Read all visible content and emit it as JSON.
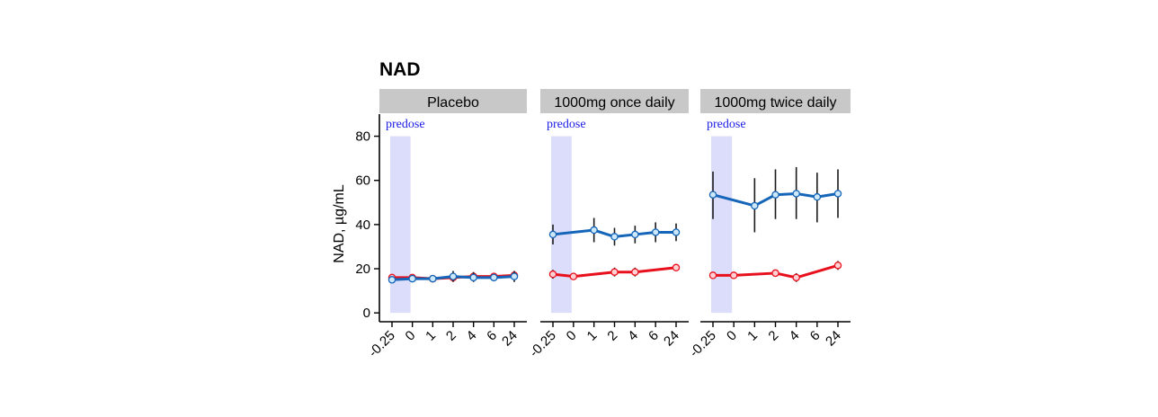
{
  "chart_data": {
    "type": "line",
    "title": "NAD",
    "ylabel": "NAD, µg/mL",
    "xlabel": "",
    "ylim": [
      -4,
      90
    ],
    "y_ticks": [
      0,
      20,
      40,
      60,
      80
    ],
    "x_ticks": [
      "-0.25",
      "0",
      "1",
      "2",
      "4",
      "6",
      "24"
    ],
    "shaded_region": {
      "label": "predose",
      "from": "-0.25",
      "to": "0",
      "fill": "#dcdcfb",
      "label_color": "#1a1ae6"
    },
    "series_styles": [
      {
        "color": "#e8101c",
        "marker_fill": "#ffd0d4"
      },
      {
        "color": "#1565b8",
        "marker_fill": "#cde8fb"
      }
    ],
    "panels": [
      {
        "label": "Placebo",
        "series": [
          {
            "x": [
              "-0.25",
              "0",
              "1",
              "2",
              "4",
              "6",
              "24"
            ],
            "values": [
              16,
              16,
              15.5,
              16,
              16.5,
              16.5,
              17
            ],
            "err_low": [
              null,
              null,
              null,
              null,
              null,
              null,
              null
            ],
            "err_high": [
              null,
              null,
              null,
              null,
              null,
              null,
              null
            ]
          },
          {
            "x": [
              "-0.25",
              "0",
              "1",
              "2",
              "4",
              "6",
              "24"
            ],
            "values": [
              15,
              15.5,
              15.5,
              16.5,
              16,
              16,
              16.5
            ],
            "err_low": [
              null,
              null,
              null,
              14,
              14,
              null,
              14
            ],
            "err_high": [
              null,
              null,
              null,
              19,
              18.5,
              null,
              19
            ]
          }
        ]
      },
      {
        "label": "1000mg once daily",
        "series": [
          {
            "x": [
              "-0.25",
              "0",
              "2",
              "4",
              "24"
            ],
            "values": [
              17.5,
              16.5,
              18.5,
              18.5,
              20.5
            ],
            "err_low": [
              15.5,
              null,
              16.5,
              16.5,
              null
            ],
            "err_high": [
              19.5,
              null,
              20.5,
              20.5,
              null
            ]
          },
          {
            "x": [
              "-0.25",
              "1",
              "2",
              "4",
              "6",
              "24"
            ],
            "values": [
              35.5,
              37.5,
              34.5,
              35.5,
              36.5,
              36.5
            ],
            "err_low": [
              31,
              32,
              30.5,
              31.5,
              32,
              32.5
            ],
            "err_high": [
              40,
              43,
              38.5,
              39.5,
              41,
              40.5
            ]
          }
        ]
      },
      {
        "label": "1000mg twice daily",
        "series": [
          {
            "x": [
              "-0.25",
              "0",
              "2",
              "4",
              "24"
            ],
            "values": [
              17,
              17,
              18,
              16,
              21.5
            ],
            "err_low": [
              null,
              null,
              null,
              14,
              19.5
            ],
            "err_high": [
              null,
              null,
              null,
              18,
              23.5
            ]
          },
          {
            "x": [
              "-0.25",
              "1",
              "2",
              "4",
              "6",
              "24"
            ],
            "values": [
              53.5,
              48.5,
              53.5,
              54,
              52.5,
              54
            ],
            "err_low": [
              42.5,
              36.5,
              42.5,
              42.5,
              41,
              43
            ],
            "err_high": [
              64,
              61,
              65,
              66,
              63.5,
              65
            ]
          }
        ]
      }
    ]
  }
}
